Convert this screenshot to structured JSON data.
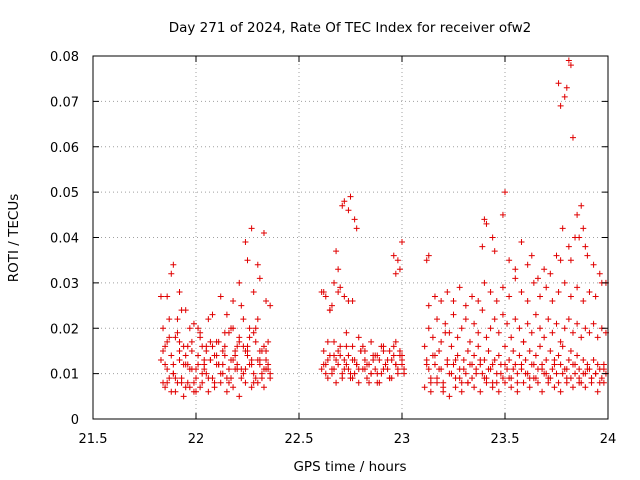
{
  "chart_data": {
    "type": "scatter",
    "title": "Day 271 of 2024, Rate Of TEC Index for receiver ofw2",
    "xlabel": "GPS time / hours",
    "ylabel": "ROTI / TECUs",
    "xlim": [
      21.5,
      24
    ],
    "ylim": [
      0,
      0.08
    ],
    "grid": true,
    "x_ticks": [
      "21.5",
      "22",
      "22.5",
      "23",
      "23.5",
      "24"
    ],
    "y_ticks": [
      "0",
      "0.01",
      "0.02",
      "0.03",
      "0.04",
      "0.05",
      "0.06",
      "0.07",
      "0.08"
    ],
    "marker": "+",
    "series": [
      {
        "name": "ROTI",
        "color": "#e00000",
        "x": [
          21.83,
          21.84,
          21.85,
          21.86,
          21.87,
          21.88,
          21.89,
          21.9,
          21.91,
          21.92,
          21.93,
          21.94,
          21.95,
          21.96,
          21.97,
          21.98,
          21.99,
          22.0,
          22.01,
          22.02,
          22.03,
          22.04,
          22.05,
          22.06,
          22.07,
          22.08,
          22.09,
          22.1,
          22.11,
          22.12,
          22.13,
          22.14,
          22.15,
          22.16,
          22.17,
          22.18,
          22.19,
          22.2,
          22.21,
          22.22,
          22.23,
          22.24,
          22.25,
          22.26,
          22.27,
          22.28,
          22.29,
          22.3,
          22.31,
          22.32,
          22.33,
          22.34,
          22.35,
          22.36,
          21.84,
          21.86,
          21.88,
          21.9,
          21.92,
          21.94,
          21.96,
          21.98,
          22.0,
          22.02,
          22.04,
          22.06,
          22.08,
          22.1,
          22.12,
          22.14,
          22.16,
          22.18,
          22.2,
          22.22,
          22.24,
          22.26,
          22.28,
          22.3,
          22.32,
          22.34,
          21.85,
          21.87,
          21.89,
          21.91,
          21.93,
          21.95,
          21.97,
          21.99,
          22.01,
          22.03,
          22.05,
          22.07,
          22.09,
          22.11,
          22.13,
          22.15,
          22.17,
          22.19,
          22.21,
          22.23,
          22.25,
          22.27,
          22.29,
          22.31,
          22.33,
          22.35,
          21.84,
          21.87,
          21.9,
          21.93,
          21.96,
          21.99,
          22.02,
          22.05,
          22.08,
          22.11,
          22.14,
          22.17,
          22.2,
          22.23,
          22.26,
          22.29,
          22.32,
          22.35,
          21.83,
          21.86,
          21.89,
          21.92,
          21.95,
          21.98,
          22.01,
          22.04,
          22.07,
          22.1,
          22.13,
          22.16,
          22.19,
          22.22,
          22.25,
          22.28,
          22.31,
          22.34,
          21.85,
          21.88,
          21.91,
          21.94,
          21.97,
          22.0,
          22.03,
          22.06,
          22.09,
          22.12,
          22.15,
          22.18,
          22.21,
          22.24,
          22.27,
          22.3,
          22.33,
          22.36,
          21.86,
          21.89,
          21.92,
          21.95,
          22.18,
          22.21,
          22.24,
          22.27,
          22.3,
          22.33,
          22.25,
          22.28,
          22.31,
          22.34,
          22.36,
          22.61,
          22.62,
          22.63,
          22.64,
          22.65,
          22.66,
          22.67,
          22.68,
          22.69,
          22.7,
          22.71,
          22.72,
          22.73,
          22.74,
          22.75,
          22.76,
          22.77,
          22.78,
          22.79,
          22.8,
          22.81,
          22.82,
          22.83,
          22.84,
          22.85,
          22.86,
          22.87,
          22.88,
          22.89,
          22.9,
          22.91,
          22.92,
          22.93,
          22.94,
          22.95,
          22.96,
          22.97,
          22.98,
          22.99,
          23.0,
          23.01,
          22.62,
          22.64,
          22.66,
          22.68,
          22.7,
          22.72,
          22.74,
          22.76,
          22.78,
          22.8,
          22.82,
          22.84,
          22.86,
          22.88,
          22.9,
          22.92,
          22.94,
          22.96,
          22.98,
          23.0,
          22.63,
          22.65,
          22.67,
          22.69,
          22.71,
          22.73,
          22.75,
          22.77,
          22.79,
          22.81,
          22.83,
          22.85,
          22.87,
          22.89,
          22.91,
          22.93,
          22.95,
          22.97,
          22.99,
          23.01,
          22.61,
          22.64,
          22.67,
          22.7,
          22.73,
          22.76,
          22.79,
          22.82,
          22.85,
          22.88,
          22.91,
          22.94,
          22.97,
          23.0,
          22.62,
          22.63,
          22.65,
          22.66,
          22.68,
          22.69,
          22.71,
          22.72,
          22.74,
          22.75,
          22.77,
          22.78,
          22.72,
          22.74,
          22.76,
          22.67,
          22.69,
          22.96,
          22.98,
          23.0,
          22.99,
          22.97,
          23.11,
          23.12,
          23.13,
          23.14,
          23.15,
          23.16,
          23.17,
          23.18,
          23.19,
          23.2,
          23.21,
          23.22,
          23.23,
          23.24,
          23.25,
          23.26,
          23.27,
          23.28,
          23.29,
          23.3,
          23.31,
          23.32,
          23.33,
          23.34,
          23.35,
          23.36,
          23.37,
          23.38,
          23.39,
          23.4,
          23.41,
          23.42,
          23.43,
          23.44,
          23.45,
          23.46,
          23.47,
          23.48,
          23.49,
          23.5,
          23.51,
          23.52,
          23.53,
          23.54,
          23.55,
          23.56,
          23.57,
          23.58,
          23.59,
          23.6,
          23.61,
          23.62,
          23.63,
          23.64,
          23.65,
          23.66,
          23.67,
          23.68,
          23.69,
          23.7,
          23.71,
          23.72,
          23.73,
          23.74,
          23.75,
          23.76,
          23.77,
          23.78,
          23.79,
          23.8,
          23.81,
          23.82,
          23.83,
          23.84,
          23.85,
          23.86,
          23.87,
          23.88,
          23.89,
          23.9,
          23.91,
          23.92,
          23.93,
          23.94,
          23.95,
          23.96,
          23.97,
          23.98,
          23.99,
          23.12,
          23.14,
          23.16,
          23.18,
          23.2,
          23.22,
          23.24,
          23.26,
          23.28,
          23.3,
          23.32,
          23.34,
          23.36,
          23.38,
          23.4,
          23.42,
          23.44,
          23.46,
          23.48,
          23.5,
          23.52,
          23.54,
          23.56,
          23.58,
          23.6,
          23.62,
          23.64,
          23.66,
          23.68,
          23.7,
          23.72,
          23.74,
          23.76,
          23.78,
          23.8,
          23.82,
          23.84,
          23.86,
          23.88,
          23.9,
          23.92,
          23.94,
          23.96,
          23.98,
          23.13,
          23.15,
          23.17,
          23.19,
          23.21,
          23.23,
          23.25,
          23.27,
          23.29,
          23.31,
          23.33,
          23.35,
          23.37,
          23.39,
          23.41,
          23.43,
          23.45,
          23.47,
          23.49,
          23.51,
          23.53,
          23.55,
          23.57,
          23.59,
          23.61,
          23.63,
          23.65,
          23.67,
          23.69,
          23.71,
          23.73,
          23.75,
          23.77,
          23.79,
          23.81,
          23.83,
          23.85,
          23.87,
          23.89,
          23.91,
          23.93,
          23.95,
          23.97,
          23.99,
          23.11,
          23.14,
          23.17,
          23.2,
          23.23,
          23.26,
          23.29,
          23.32,
          23.35,
          23.38,
          23.41,
          23.44,
          23.47,
          23.5,
          23.53,
          23.56,
          23.59,
          23.62,
          23.65,
          23.68,
          23.71,
          23.74,
          23.77,
          23.8,
          23.83,
          23.86,
          23.89,
          23.92,
          23.95,
          23.98,
          23.13,
          23.16,
          23.19,
          23.22,
          23.25,
          23.28,
          23.31,
          23.34,
          23.37,
          23.4,
          23.43,
          23.46,
          23.49,
          23.52,
          23.55,
          23.58,
          23.61,
          23.64,
          23.67,
          23.7,
          23.73,
          23.76,
          23.79,
          23.82,
          23.85,
          23.88,
          23.91,
          23.94,
          23.97,
          23.12,
          23.13,
          23.39,
          23.4,
          23.41,
          23.44,
          23.45,
          23.49,
          23.5,
          23.52,
          23.55,
          23.58,
          23.61,
          23.63,
          23.66,
          23.69,
          23.72,
          23.75,
          23.77,
          23.78,
          23.79,
          23.8,
          23.81,
          23.82,
          23.83,
          23.84,
          23.85,
          23.86,
          23.87,
          23.88,
          23.89,
          23.9,
          23.93,
          23.96,
          23.99,
          23.76,
          23.77,
          23.81,
          23.82
        ],
        "y": [
          0.027,
          0.015,
          0.012,
          0.008,
          0.018,
          0.032,
          0.01,
          0.006,
          0.022,
          0.013,
          0.009,
          0.016,
          0.007,
          0.012,
          0.02,
          0.011,
          0.006,
          0.009,
          0.014,
          0.018,
          0.01,
          0.012,
          0.016,
          0.022,
          0.013,
          0.009,
          0.014,
          0.017,
          0.012,
          0.027,
          0.01,
          0.016,
          0.023,
          0.011,
          0.009,
          0.02,
          0.014,
          0.012,
          0.018,
          0.025,
          0.016,
          0.011,
          0.015,
          0.02,
          0.013,
          0.008,
          0.017,
          0.022,
          0.012,
          0.01,
          0.016,
          0.013,
          0.011,
          0.01,
          0.02,
          0.011,
          0.014,
          0.009,
          0.017,
          0.012,
          0.008,
          0.015,
          0.011,
          0.007,
          0.013,
          0.009,
          0.016,
          0.012,
          0.01,
          0.014,
          0.008,
          0.013,
          0.011,
          0.009,
          0.015,
          0.012,
          0.01,
          0.013,
          0.009,
          0.011,
          0.016,
          0.009,
          0.012,
          0.019,
          0.008,
          0.014,
          0.011,
          0.008,
          0.012,
          0.016,
          0.01,
          0.013,
          0.008,
          0.012,
          0.015,
          0.009,
          0.013,
          0.011,
          0.017,
          0.01,
          0.014,
          0.012,
          0.009,
          0.015,
          0.011,
          0.012,
          0.008,
          0.022,
          0.018,
          0.024,
          0.016,
          0.021,
          0.019,
          0.015,
          0.023,
          0.017,
          0.019,
          0.02,
          0.016,
          0.022,
          0.018,
          0.02,
          0.015,
          0.017,
          0.013,
          0.017,
          0.01,
          0.015,
          0.012,
          0.017,
          0.02,
          0.011,
          0.017,
          0.014,
          0.012,
          0.019,
          0.015,
          0.011,
          0.016,
          0.019,
          0.013,
          0.015,
          0.007,
          0.006,
          0.008,
          0.005,
          0.007,
          0.006,
          0.008,
          0.006,
          0.007,
          0.008,
          0.006,
          0.007,
          0.005,
          0.008,
          0.007,
          0.008,
          0.007,
          0.009,
          0.027,
          0.034,
          0.028,
          0.024,
          0.026,
          0.03,
          0.039,
          0.042,
          0.034,
          0.041,
          0.035,
          0.028,
          0.031,
          0.026,
          0.025,
          0.028,
          0.015,
          0.012,
          0.009,
          0.024,
          0.011,
          0.014,
          0.008,
          0.012,
          0.029,
          0.01,
          0.013,
          0.016,
          0.011,
          0.009,
          0.013,
          0.01,
          0.012,
          0.008,
          0.015,
          0.011,
          0.013,
          0.009,
          0.012,
          0.01,
          0.014,
          0.011,
          0.008,
          0.013,
          0.01,
          0.015,
          0.012,
          0.011,
          0.009,
          0.013,
          0.016,
          0.012,
          0.01,
          0.014,
          0.012,
          0.011,
          0.012,
          0.017,
          0.01,
          0.013,
          0.016,
          0.011,
          0.014,
          0.009,
          0.012,
          0.015,
          0.011,
          0.008,
          0.013,
          0.01,
          0.016,
          0.012,
          0.009,
          0.014,
          0.011,
          0.013,
          0.01,
          0.014,
          0.011,
          0.015,
          0.009,
          0.012,
          0.01,
          0.013,
          0.011,
          0.016,
          0.012,
          0.01,
          0.014,
          0.008,
          0.011,
          0.013,
          0.009,
          0.012,
          0.015,
          0.01,
          0.011,
          0.013,
          0.017,
          0.014,
          0.019,
          0.016,
          0.018,
          0.015,
          0.017,
          0.014,
          0.016,
          0.015,
          0.017,
          0.014,
          0.028,
          0.027,
          0.024,
          0.025,
          0.037,
          0.033,
          0.047,
          0.048,
          0.046,
          0.049,
          0.044,
          0.042,
          0.027,
          0.026,
          0.026,
          0.03,
          0.028,
          0.036,
          0.035,
          0.039,
          0.033,
          0.032,
          0.016,
          0.013,
          0.011,
          0.008,
          0.014,
          0.012,
          0.009,
          0.015,
          0.011,
          0.007,
          0.019,
          0.013,
          0.01,
          0.016,
          0.012,
          0.009,
          0.014,
          0.011,
          0.008,
          0.013,
          0.01,
          0.015,
          0.012,
          0.009,
          0.014,
          0.011,
          0.016,
          0.012,
          0.01,
          0.013,
          0.009,
          0.015,
          0.011,
          0.008,
          0.013,
          0.01,
          0.014,
          0.012,
          0.009,
          0.016,
          0.011,
          0.013,
          0.009,
          0.015,
          0.012,
          0.01,
          0.014,
          0.011,
          0.017,
          0.013,
          0.01,
          0.015,
          0.012,
          0.009,
          0.014,
          0.011,
          0.016,
          0.012,
          0.01,
          0.013,
          0.009,
          0.015,
          0.011,
          0.013,
          0.01,
          0.014,
          0.012,
          0.016,
          0.011,
          0.009,
          0.013,
          0.015,
          0.012,
          0.01,
          0.014,
          0.011,
          0.008,
          0.013,
          0.01,
          0.012,
          0.011,
          0.009,
          0.013,
          0.01,
          0.012,
          0.011,
          0.009,
          0.012,
          0.01,
          0.012,
          0.009,
          0.014,
          0.011,
          0.008,
          0.012,
          0.01,
          0.013,
          0.009,
          0.011,
          0.008,
          0.012,
          0.01,
          0.013,
          0.009,
          0.011,
          0.012,
          0.008,
          0.01,
          0.012,
          0.009,
          0.011,
          0.008,
          0.012,
          0.01,
          0.009,
          0.012,
          0.008,
          0.011,
          0.01,
          0.009,
          0.012,
          0.008,
          0.01,
          0.011,
          0.009,
          0.012,
          0.008,
          0.01,
          0.011,
          0.009,
          0.01,
          0.008,
          0.011,
          0.02,
          0.018,
          0.022,
          0.017,
          0.021,
          0.019,
          0.023,
          0.018,
          0.02,
          0.022,
          0.017,
          0.021,
          0.019,
          0.024,
          0.018,
          0.02,
          0.022,
          0.019,
          0.023,
          0.021,
          0.018,
          0.022,
          0.02,
          0.017,
          0.021,
          0.019,
          0.023,
          0.02,
          0.018,
          0.022,
          0.019,
          0.021,
          0.017,
          0.02,
          0.022,
          0.019,
          0.021,
          0.018,
          0.02,
          0.019,
          0.021,
          0.018,
          0.02,
          0.019,
          0.007,
          0.006,
          0.008,
          0.006,
          0.005,
          0.007,
          0.006,
          0.008,
          0.007,
          0.006,
          0.008,
          0.007,
          0.006,
          0.008,
          0.007,
          0.006,
          0.008,
          0.007,
          0.009,
          0.006,
          0.008,
          0.007,
          0.006,
          0.008,
          0.007,
          0.009,
          0.007,
          0.008,
          0.006,
          0.008,
          0.025,
          0.027,
          0.026,
          0.028,
          0.026,
          0.029,
          0.025,
          0.027,
          0.026,
          0.03,
          0.028,
          0.026,
          0.029,
          0.027,
          0.031,
          0.028,
          0.026,
          0.03,
          0.027,
          0.029,
          0.026,
          0.028,
          0.03,
          0.027,
          0.029,
          0.026,
          0.028,
          0.027,
          0.03,
          0.035,
          0.036,
          0.038,
          0.044,
          0.043,
          0.04,
          0.037,
          0.045,
          0.05,
          0.035,
          0.033,
          0.039,
          0.034,
          0.036,
          0.031,
          0.033,
          0.032,
          0.036,
          0.035,
          0.042,
          0.071,
          0.073,
          0.079,
          0.078,
          0.062,
          0.04,
          0.045,
          0.04,
          0.047,
          0.042,
          0.038,
          0.036,
          0.034,
          0.032,
          0.03,
          0.074,
          0.069,
          0.038,
          0.035
        ]
      }
    ]
  }
}
